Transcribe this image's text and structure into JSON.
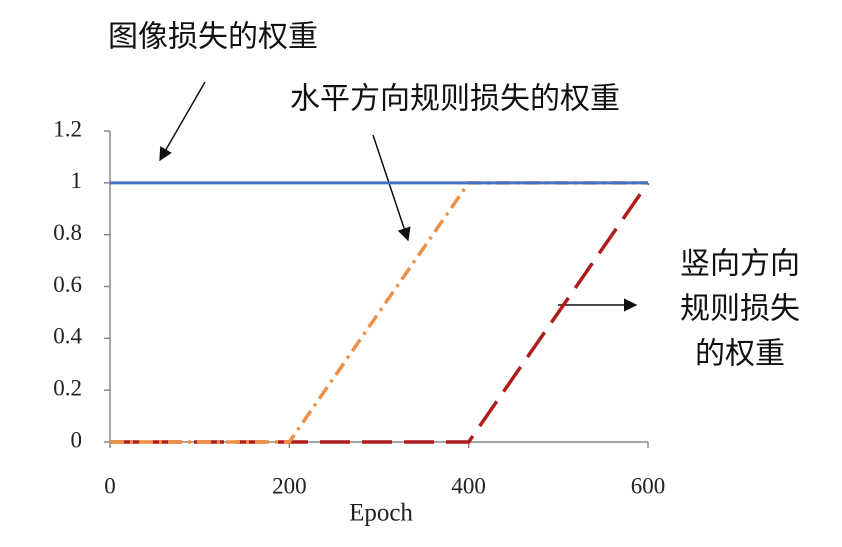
{
  "chart_data": {
    "type": "line",
    "xlabel": "Epoch",
    "series": [
      {
        "color": "#4472c4",
        "dash": "solid",
        "x": [
          0,
          600
        ],
        "values": [
          1,
          1
        ]
      },
      {
        "color": "#ed8f45",
        "dash": "dashdot",
        "x": [
          0,
          200,
          400,
          600
        ],
        "values": [
          0,
          0,
          1,
          1
        ]
      },
      {
        "color": "#b01c1c",
        "dash": "dashed",
        "x": [
          0,
          400,
          600
        ],
        "values": [
          0,
          0,
          1
        ]
      }
    ],
    "annotations": [
      {
        "lines": [
          "图像损失的权重"
        ]
      },
      {
        "lines": [
          "水平方向规则损失的权重"
        ]
      },
      {
        "lines": [
          "竖向方向",
          "规则损失",
          "的权重"
        ]
      }
    ],
    "xlim": [
      0,
      600
    ],
    "xticks": [
      0,
      200,
      400,
      600
    ],
    "ylim": [
      0,
      1.2
    ],
    "yticks": [
      0,
      0.2,
      0.4,
      0.6,
      0.8,
      1,
      1.2
    ],
    "grid": false
  }
}
